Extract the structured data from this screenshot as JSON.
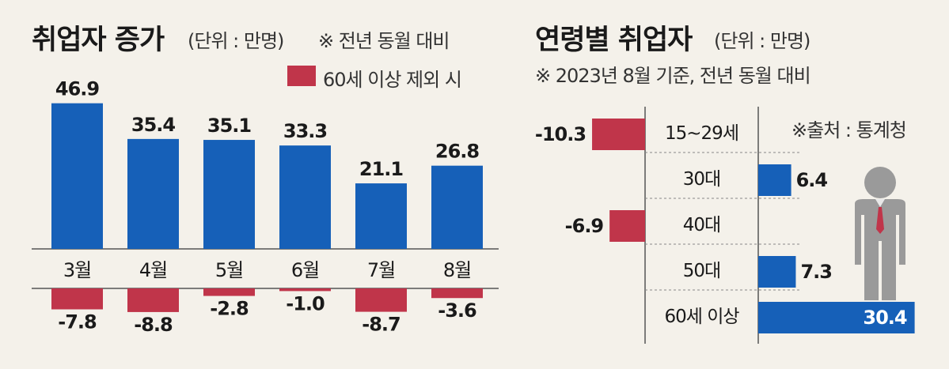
{
  "left": {
    "title": "취업자 증가",
    "unit": "(단위 : 만명)",
    "note": "※ 전년 동월 대비",
    "legend": "60세 이상 제외 시"
  },
  "right": {
    "title": "연령별 취업자",
    "unit": "(단위 : 만명)",
    "note": "※ 2023년 8월 기준, 전년 동월 대비",
    "source": "※출처 : 통계청"
  },
  "colors": {
    "blue": "#1660b8",
    "red": "#c0354a",
    "bg": "#f4f1ea",
    "person": "#9a9a9a"
  },
  "chart_data": [
    {
      "type": "bar",
      "title": "취업자 증가",
      "categories": [
        "3월",
        "4월",
        "5월",
        "6월",
        "7월",
        "8월"
      ],
      "series": [
        {
          "name": "취업자 증가",
          "values": [
            46.9,
            35.4,
            35.1,
            33.3,
            21.1,
            26.8
          ],
          "labels": [
            "46.9",
            "35.4",
            "35.1",
            "33.3",
            "21.1",
            "26.8"
          ]
        },
        {
          "name": "60세 이상 제외 시",
          "values": [
            -7.8,
            -8.8,
            -2.8,
            -1.0,
            -8.7,
            -3.6
          ],
          "labels": [
            "-7.8",
            "-8.8",
            "-2.8",
            "-1.0",
            "-8.7",
            "-3.6"
          ]
        }
      ],
      "ylabel": "만명"
    },
    {
      "type": "bar",
      "orientation": "horizontal",
      "title": "연령별 취업자",
      "categories": [
        "15~29세",
        "30대",
        "40대",
        "50대",
        "60세 이상"
      ],
      "values": [
        -10.3,
        6.4,
        -6.9,
        7.3,
        30.4
      ],
      "labels": [
        "-10.3",
        "6.4",
        "-6.9",
        "7.3",
        "30.4"
      ]
    }
  ]
}
